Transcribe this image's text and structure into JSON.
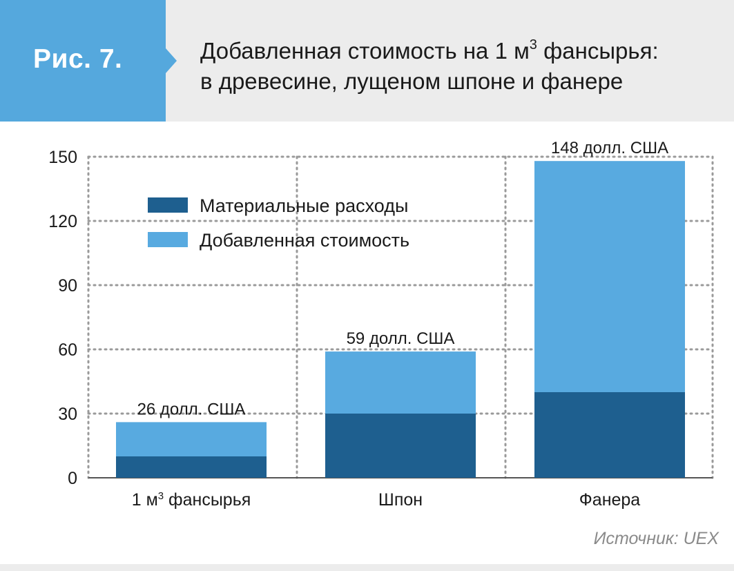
{
  "figure_label": "Рис. 7.",
  "title": {
    "line1_before": "Добавленная стоимость на 1 м",
    "line1_sup": "3",
    "line1_after": " фансырья:",
    "line2": "в древесине, лущеном шпоне и фанере"
  },
  "source": "Источник: UEX",
  "colors": {
    "header_bg": "#ececec",
    "tab": "#55a8dd",
    "material": "#1e5f8f",
    "added": "#58aae0",
    "grid": "#9a9a9a"
  },
  "chart_data": {
    "type": "bar",
    "stacked": true,
    "categories": [
      {
        "before": "1 м",
        "sup": "3",
        "after": " фансырья"
      },
      {
        "before": "Шпон",
        "sup": "",
        "after": ""
      },
      {
        "before": "Фанера",
        "sup": "",
        "after": ""
      }
    ],
    "series": [
      {
        "name": "Материальные расходы",
        "values": [
          10,
          30,
          40
        ]
      },
      {
        "name": "Добавленная стоимость",
        "values": [
          16,
          29,
          108
        ]
      }
    ],
    "totals": [
      26,
      59,
      148
    ],
    "total_labels": [
      "26 долл. США",
      "59 долл. США",
      "148 долл. США"
    ],
    "ylim": [
      0,
      150
    ],
    "yticks": [
      0,
      30,
      60,
      90,
      120,
      150
    ],
    "grid": true,
    "legend_position": "top-left"
  }
}
